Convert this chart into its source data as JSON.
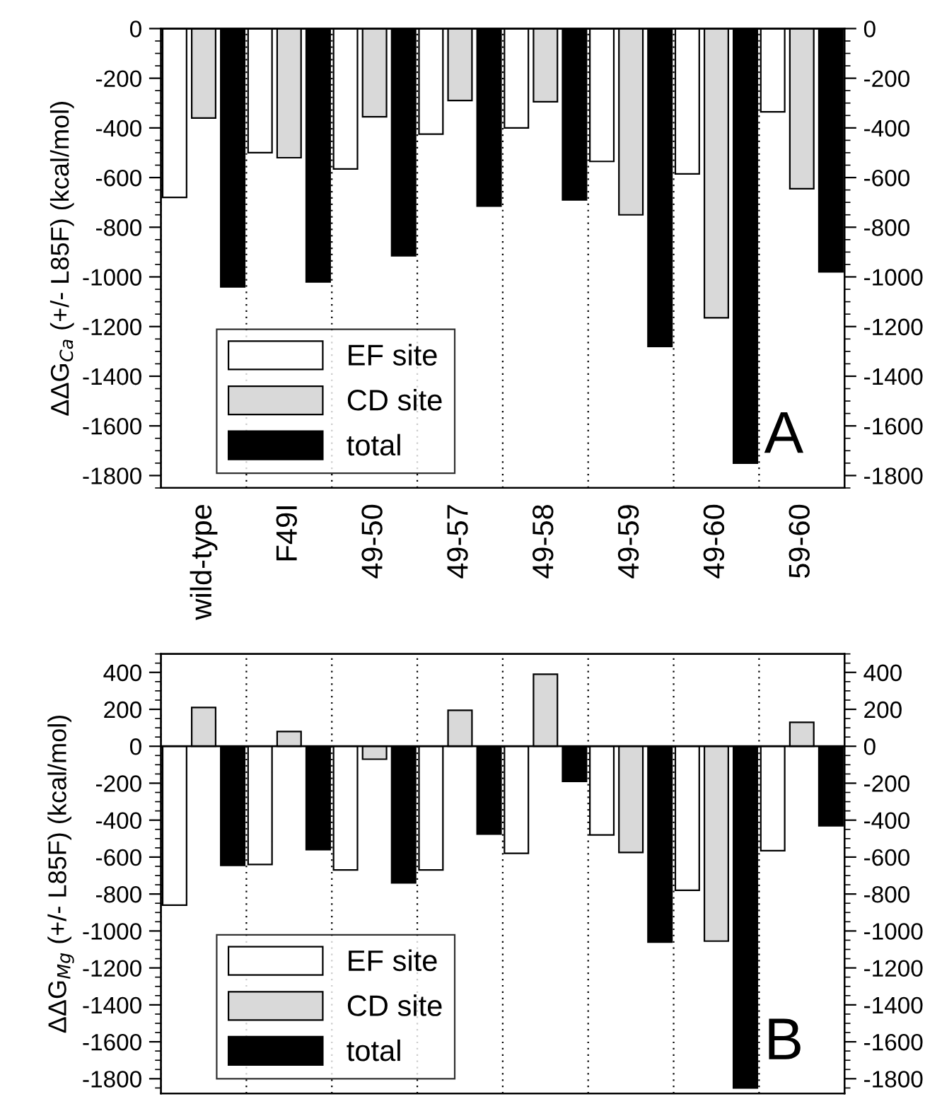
{
  "chart_data": [
    {
      "type": "bar",
      "ylabel": "ΔΔG$_{Ca}$ (+/- L85F) (kcal/mol)",
      "categories": [
        "wild-type",
        "F49I",
        "49-50",
        "49-57",
        "49-58",
        "49-59",
        "49-60",
        "59-60"
      ],
      "series": [
        {
          "name": "EF site",
          "color": "#ffffff",
          "values": [
            -680,
            -500,
            -565,
            -425,
            -400,
            -535,
            -585,
            -335
          ]
        },
        {
          "name": "CD site",
          "color": "#d9d9d9",
          "values": [
            -360,
            -520,
            -355,
            -290,
            -295,
            -750,
            -1165,
            -645
          ]
        },
        {
          "name": "total",
          "color": "#000000",
          "values": [
            -1040,
            -1020,
            -915,
            -715,
            -690,
            -1280,
            -1750,
            -980
          ]
        }
      ],
      "ylim": [
        -1850,
        0
      ],
      "yticks": [
        0,
        -200,
        -400,
        -600,
        -800,
        -1000,
        -1200,
        -1400,
        -1600,
        -1800
      ],
      "y2lim": [
        -1850,
        0
      ],
      "y2ticks": [
        0,
        -200,
        -400,
        -600,
        -800,
        -1000,
        -1200,
        -1400,
        -1600,
        -1800
      ],
      "grid": "x",
      "legend": "bottom left",
      "annotations": [
        "A"
      ]
    },
    {
      "type": "bar",
      "ylabel": "ΔΔG$_{Mg}$ (+/- L85F) (kcal/mol)",
      "categories": [
        null,
        null,
        null,
        null,
        null,
        null,
        null,
        null
      ],
      "series": [
        {
          "name": "EF site",
          "color": "#ffffff",
          "values": [
            -860,
            -640,
            -670,
            -670,
            -580,
            -480,
            -780,
            -565
          ]
        },
        {
          "name": "CD site",
          "color": "#d9d9d9",
          "values": [
            210,
            80,
            -70,
            195,
            390,
            -575,
            -1055,
            130
          ]
        },
        {
          "name": "total",
          "color": "#000000",
          "values": [
            -645,
            -560,
            -740,
            -475,
            -190,
            -1060,
            -1850,
            -430
          ]
        }
      ],
      "ylim": [
        -1880,
        500
      ],
      "yticks": [
        400,
        200,
        0,
        -200,
        -400,
        -600,
        -800,
        -1000,
        -1200,
        -1400,
        -1600,
        -1800
      ],
      "y2lim": [
        -1880,
        500
      ],
      "y2ticks": [
        400,
        200,
        0,
        -200,
        -400,
        -600,
        -800,
        -1000,
        -1200,
        -1400,
        -1600,
        -1800
      ],
      "grid": "x",
      "legend": "bottom left",
      "annotations": [
        "B"
      ]
    }
  ]
}
